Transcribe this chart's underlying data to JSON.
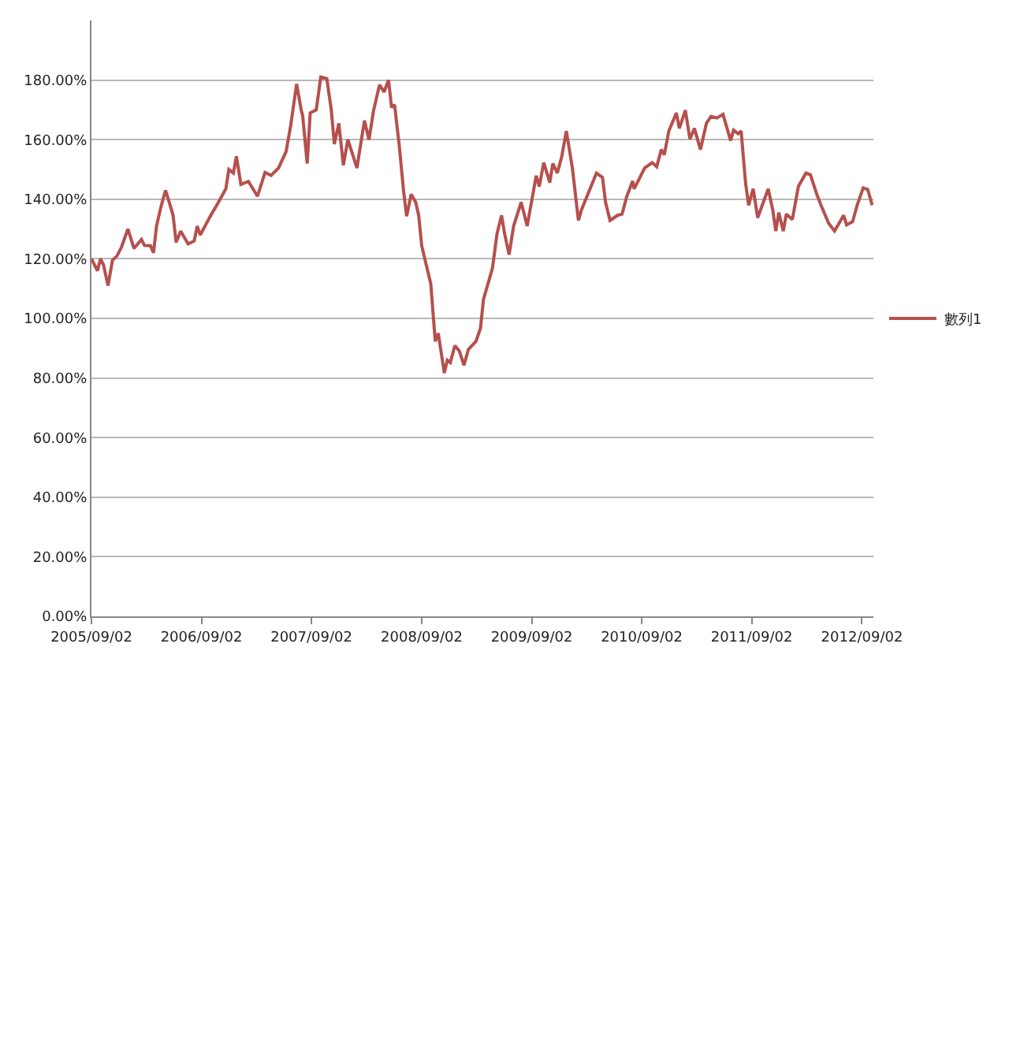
{
  "chart_data": {
    "type": "line",
    "x": [
      "2005-09-02",
      "2005-09-22",
      "2005-10-02",
      "2005-10-12",
      "2005-10-27",
      "2005-11-11",
      "2005-11-26",
      "2005-12-11",
      "2006-01-01",
      "2006-01-21",
      "2006-02-15",
      "2006-02-25",
      "2006-03-17",
      "2006-03-27",
      "2006-04-06",
      "2006-04-21",
      "2006-05-06",
      "2006-05-21",
      "2006-05-31",
      "2006-06-10",
      "2006-06-25",
      "2006-07-20",
      "2006-08-09",
      "2006-08-19",
      "2006-08-29",
      "2006-10-03",
      "2006-10-23",
      "2006-11-22",
      "2006-12-02",
      "2006-12-17",
      "2006-12-27",
      "2007-01-11",
      "2007-02-05",
      "2007-03-07",
      "2007-04-01",
      "2007-04-21",
      "2007-05-16",
      "2007-06-10",
      "2007-06-25",
      "2007-07-15",
      "2007-07-30",
      "2007-08-04",
      "2007-08-19",
      "2007-08-29",
      "2007-09-18",
      "2007-10-03",
      "2007-10-23",
      "2007-11-07",
      "2007-11-17",
      "2007-12-02",
      "2007-12-17",
      "2008-01-01",
      "2008-01-31",
      "2008-02-25",
      "2008-03-11",
      "2008-03-26",
      "2008-04-15",
      "2008-04-30",
      "2008-05-15",
      "2008-05-25",
      "2008-06-04",
      "2008-06-19",
      "2008-07-04",
      "2008-07-14",
      "2008-07-29",
      "2008-08-13",
      "2008-08-23",
      "2008-09-02",
      "2008-09-17",
      "2008-10-02",
      "2008-10-17",
      "2008-10-27",
      "2008-11-16",
      "2008-11-26",
      "2008-12-06",
      "2008-12-21",
      "2009-01-05",
      "2009-01-20",
      "2009-02-04",
      "2009-03-01",
      "2009-03-16",
      "2009-03-26",
      "2009-04-15",
      "2009-04-25",
      "2009-05-10",
      "2009-05-25",
      "2009-06-04",
      "2009-06-19",
      "2009-07-04",
      "2009-07-29",
      "2009-08-18",
      "2009-09-17",
      "2009-09-27",
      "2009-10-12",
      "2009-11-01",
      "2009-11-11",
      "2009-11-26",
      "2009-12-11",
      "2009-12-26",
      "2010-01-15",
      "2010-02-04",
      "2010-02-14",
      "2010-03-11",
      "2010-04-05",
      "2010-04-25",
      "2010-05-05",
      "2010-05-20",
      "2010-06-14",
      "2010-06-29",
      "2010-07-14",
      "2010-08-03",
      "2010-08-08",
      "2010-09-12",
      "2010-10-07",
      "2010-10-22",
      "2010-11-06",
      "2010-11-16",
      "2010-12-01",
      "2010-12-26",
      "2011-01-05",
      "2011-01-25",
      "2011-02-09",
      "2011-02-24",
      "2011-03-16",
      "2011-04-05",
      "2011-04-20",
      "2011-05-10",
      "2011-05-30",
      "2011-06-24",
      "2011-07-04",
      "2011-07-19",
      "2011-07-29",
      "2011-08-13",
      "2011-08-23",
      "2011-09-07",
      "2011-09-22",
      "2011-10-07",
      "2011-10-27",
      "2011-11-11",
      "2011-11-21",
      "2011-12-01",
      "2011-12-16",
      "2011-12-26",
      "2012-01-15",
      "2012-02-04",
      "2012-02-29",
      "2012-03-15",
      "2012-04-04",
      "2012-04-19",
      "2012-05-14",
      "2012-06-03",
      "2012-07-03",
      "2012-07-13",
      "2012-08-02",
      "2012-08-17",
      "2012-09-06",
      "2012-09-21",
      "2012-10-06"
    ],
    "series": [
      {
        "name": "數列1",
        "color": "#b5504d",
        "values": [
          120,
          116,
          120,
          118,
          111,
          119.6,
          121,
          124,
          130,
          123.5,
          126.5,
          124.5,
          124.4,
          122,
          131,
          137.6,
          143,
          138,
          134.6,
          125.5,
          129.3,
          125,
          126,
          131,
          128,
          134.6,
          138,
          143.5,
          150,
          148.8,
          154.4,
          145,
          146,
          141,
          149,
          148,
          150.5,
          156,
          164.6,
          178.7,
          170,
          168,
          152,
          169,
          170,
          181,
          180.5,
          170,
          158.5,
          165.5,
          151.4,
          160,
          150.5,
          166.4,
          160,
          169.6,
          178.4,
          176,
          180,
          170.8,
          171.7,
          158.5,
          142.6,
          134.3,
          141.7,
          139,
          134.6,
          124.4,
          118,
          111.7,
          92.3,
          95,
          81.7,
          86,
          85.2,
          90.9,
          89,
          84.3,
          89.6,
          92.3,
          96.7,
          106.4,
          113.4,
          117,
          128.5,
          134.6,
          128.5,
          121.4,
          131,
          139,
          131,
          147.9,
          144.3,
          152.3,
          145.6,
          152,
          148.8,
          154.4,
          162.9,
          150.5,
          132.9,
          136.4,
          142.6,
          148.8,
          147.3,
          139,
          132.9,
          134.6,
          135,
          140.8,
          146.1,
          143.5,
          150.5,
          152.3,
          150.9,
          156.7,
          154.9,
          162.9,
          169,
          163.8,
          169.9,
          160.2,
          163.8,
          156.7,
          165.5,
          167.8,
          167.3,
          168.5,
          159.7,
          163.2,
          162,
          162.9,
          145.2,
          138,
          143.5,
          133.8,
          138,
          143.5,
          136.4,
          129.3,
          135.5,
          129.3,
          135,
          133.2,
          144.3,
          148.8,
          148.2,
          142,
          138,
          132,
          129.3,
          134.6,
          131.4,
          132.5,
          138,
          143.8,
          143.3,
          138
        ]
      }
    ],
    "xlim": [
      "2005-09-02",
      "2012-10-10"
    ],
    "xticks": [
      {
        "value": "2005-09-02",
        "label": "2005/09/02"
      },
      {
        "value": "2006-09-02",
        "label": "2006/09/02"
      },
      {
        "value": "2007-09-02",
        "label": "2007/09/02"
      },
      {
        "value": "2008-09-02",
        "label": "2008/09/02"
      },
      {
        "value": "2009-09-02",
        "label": "2009/09/02"
      },
      {
        "value": "2010-09-02",
        "label": "2010/09/02"
      },
      {
        "value": "2011-09-02",
        "label": "2011/09/02"
      },
      {
        "value": "2012-09-02",
        "label": "2012/09/02"
      }
    ],
    "ylim": [
      0,
      200
    ],
    "yticks": [
      {
        "value": 0,
        "label": "0.00%"
      },
      {
        "value": 20,
        "label": "20.00%"
      },
      {
        "value": 40,
        "label": "40.00%"
      },
      {
        "value": 60,
        "label": "60.00%"
      },
      {
        "value": 80,
        "label": "80.00%"
      },
      {
        "value": 100,
        "label": "100.00%"
      },
      {
        "value": 120,
        "label": "120.00%"
      },
      {
        "value": 140,
        "label": "140.00%"
      },
      {
        "value": 160,
        "label": "160.00%"
      },
      {
        "value": 180,
        "label": "180.00%"
      }
    ],
    "grid": "y",
    "legend": "right",
    "marker": "none",
    "line_style": "solid"
  }
}
